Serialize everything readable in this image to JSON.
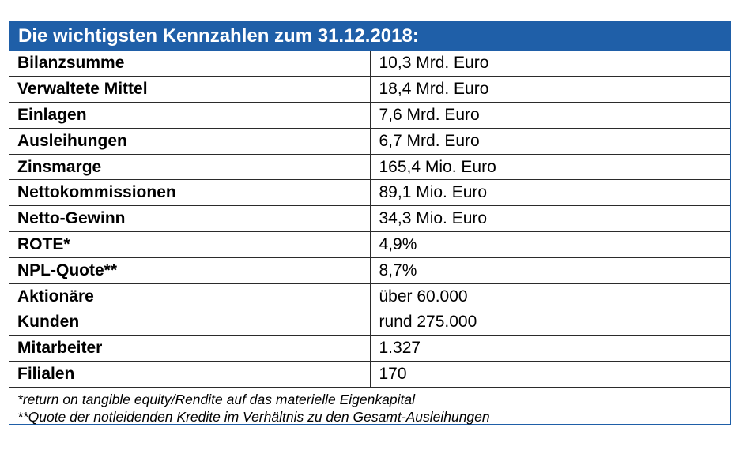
{
  "title": "Die wichtigsten Kennzahlen zum 31.12.2018:",
  "rows": [
    {
      "label": "Bilanzsumme",
      "value": "10,3 Mrd. Euro"
    },
    {
      "label": "Verwaltete Mittel",
      "value": "18,4 Mrd. Euro"
    },
    {
      "label": "Einlagen",
      "value": "7,6 Mrd. Euro"
    },
    {
      "label": "Ausleihungen",
      "value": "6,7 Mrd. Euro"
    },
    {
      "label": "Zinsmarge",
      "value": "165,4 Mio. Euro"
    },
    {
      "label": "Nettokommissionen",
      "value": "89,1 Mio. Euro"
    },
    {
      "label": "Netto-Gewinn",
      "value": "34,3 Mio. Euro"
    },
    {
      "label": "ROTE*",
      "value": "4,9%"
    },
    {
      "label": "NPL-Quote**",
      "value": "8,7%"
    },
    {
      "label": "Aktionäre",
      "value": "über 60.000"
    },
    {
      "label": "Kunden",
      "value": "rund 275.000"
    },
    {
      "label": "Mitarbeiter",
      "value": "1.327"
    },
    {
      "label": "Filialen",
      "value": "170"
    }
  ],
  "footnotes": [
    "*return on tangible equity/Rendite auf das materielle Eigenkapital",
    "**Quote der notleidenden Kredite im Verhältnis zu den Gesamt-Ausleihungen"
  ],
  "colors": {
    "header_background": "#1f5fa8",
    "header_text": "#ffffff",
    "border": "#1f5fa8"
  }
}
